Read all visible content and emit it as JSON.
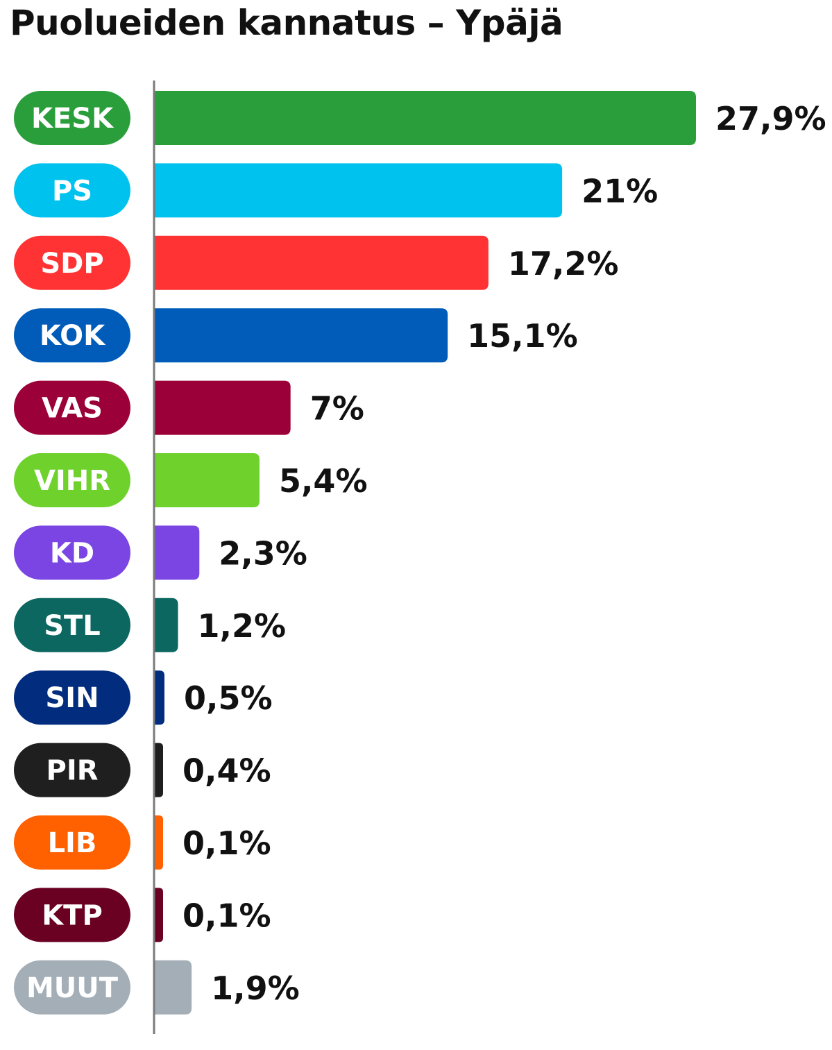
{
  "chart_data": {
    "type": "bar",
    "orientation": "horizontal",
    "title": "Puolueiden kannatus – Ypäjä",
    "xlabel": "",
    "ylabel": "",
    "xlim": [
      0,
      27.9
    ],
    "grid": false,
    "legend": "none",
    "categories": [
      "KESK",
      "PS",
      "SDP",
      "KOK",
      "VAS",
      "VIHR",
      "KD",
      "STL",
      "SIN",
      "PIR",
      "LIB",
      "KTP",
      "MUUT"
    ],
    "values": [
      27.9,
      21,
      17.2,
      15.1,
      7,
      5.4,
      2.3,
      1.2,
      0.5,
      0.4,
      0.1,
      0.1,
      1.9
    ],
    "value_labels": [
      "27,9%",
      "21%",
      "17,2%",
      "15,1%",
      "7%",
      "5,4%",
      "2,3%",
      "1,2%",
      "0,5%",
      "0,4%",
      "0,1%",
      "0,1%",
      "1,9%"
    ],
    "colors": [
      "#2a9e3b",
      "#00c2ee",
      "#ff3333",
      "#005cb8",
      "#9b0038",
      "#6fd22c",
      "#7a45e3",
      "#0b6760",
      "#022c7d",
      "#1f1f1f",
      "#ff6000",
      "#6a0022",
      "#a4aeb7"
    ]
  }
}
